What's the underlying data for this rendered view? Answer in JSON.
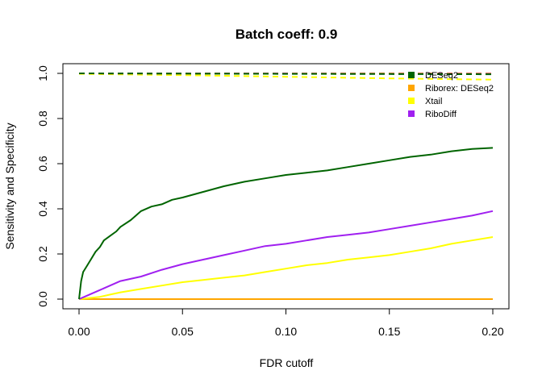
{
  "chart_data": {
    "type": "line",
    "title": "Batch coeff: 0.9",
    "xlabel": "FDR cutoff",
    "ylabel": "Sensitivity and Specificity",
    "xlim": [
      0,
      0.2
    ],
    "ylim": [
      0,
      1
    ],
    "xticks": [
      0,
      0.05,
      0.1,
      0.15,
      0.2
    ],
    "xtick_labels": [
      "0.00",
      "0.05",
      "0.10",
      "0.15",
      "0.20"
    ],
    "yticks": [
      0,
      0.2,
      0.4,
      0.6,
      0.8,
      1.0
    ],
    "ytick_labels": [
      "0.0",
      "0.2",
      "0.4",
      "0.6",
      "0.8",
      "1.0"
    ],
    "grid": false,
    "legend_position": "top-right",
    "series": [
      {
        "name": "DESeq2",
        "color": "#006400",
        "role": "sensitivity",
        "x": [
          0,
          0.001,
          0.002,
          0.004,
          0.006,
          0.008,
          0.01,
          0.012,
          0.015,
          0.018,
          0.02,
          0.025,
          0.03,
          0.035,
          0.04,
          0.045,
          0.05,
          0.06,
          0.07,
          0.08,
          0.09,
          0.1,
          0.11,
          0.12,
          0.13,
          0.14,
          0.15,
          0.16,
          0.17,
          0.18,
          0.19,
          0.2
        ],
        "values": [
          0,
          0.08,
          0.12,
          0.15,
          0.18,
          0.21,
          0.23,
          0.26,
          0.28,
          0.3,
          0.32,
          0.35,
          0.39,
          0.41,
          0.42,
          0.44,
          0.45,
          0.475,
          0.5,
          0.52,
          0.535,
          0.55,
          0.56,
          0.57,
          0.585,
          0.6,
          0.615,
          0.63,
          0.64,
          0.655,
          0.665,
          0.67
        ]
      },
      {
        "name": "Riborex: DESeq2",
        "color": "#FFA500",
        "role": "sensitivity",
        "x": [
          0,
          0.2
        ],
        "values": [
          0,
          0
        ]
      },
      {
        "name": "Xtail",
        "color": "#FFFF00",
        "role": "sensitivity",
        "x": [
          0,
          0.005,
          0.01,
          0.015,
          0.02,
          0.03,
          0.04,
          0.05,
          0.06,
          0.07,
          0.08,
          0.09,
          0.1,
          0.11,
          0.12,
          0.13,
          0.14,
          0.15,
          0.16,
          0.17,
          0.18,
          0.19,
          0.2
        ],
        "values": [
          0,
          0.005,
          0.01,
          0.02,
          0.03,
          0.045,
          0.06,
          0.075,
          0.085,
          0.095,
          0.105,
          0.12,
          0.135,
          0.15,
          0.16,
          0.175,
          0.185,
          0.195,
          0.21,
          0.225,
          0.245,
          0.26,
          0.275
        ]
      },
      {
        "name": "RiboDiff",
        "color": "#A020F0",
        "role": "sensitivity",
        "x": [
          0,
          0.005,
          0.01,
          0.015,
          0.02,
          0.03,
          0.04,
          0.05,
          0.06,
          0.07,
          0.08,
          0.09,
          0.1,
          0.11,
          0.12,
          0.13,
          0.14,
          0.15,
          0.16,
          0.17,
          0.18,
          0.19,
          0.2
        ],
        "values": [
          0,
          0.02,
          0.04,
          0.06,
          0.08,
          0.1,
          0.13,
          0.155,
          0.175,
          0.195,
          0.215,
          0.235,
          0.245,
          0.26,
          0.275,
          0.285,
          0.295,
          0.31,
          0.325,
          0.34,
          0.355,
          0.37,
          0.39
        ]
      },
      {
        "name": "DESeq2",
        "color": "#006400",
        "role": "specificity",
        "dashed": true,
        "x": [
          0,
          0.05,
          0.1,
          0.15,
          0.2
        ],
        "values": [
          1.0,
          0.999,
          0.998,
          0.997,
          0.996
        ]
      },
      {
        "name": "Riborex: DESeq2",
        "color": "#FFA500",
        "role": "specificity",
        "dashed": true,
        "x": [
          0,
          0.05,
          0.1,
          0.15,
          0.2
        ],
        "values": [
          1.0,
          1.0,
          1.0,
          1.0,
          1.0
        ]
      },
      {
        "name": "Xtail",
        "color": "#FFFF00",
        "role": "specificity",
        "dashed": true,
        "x": [
          0,
          0.05,
          0.1,
          0.15,
          0.2
        ],
        "values": [
          0.998,
          0.992,
          0.985,
          0.978,
          0.972
        ]
      },
      {
        "name": "RiboDiff",
        "color": "#A020F0",
        "role": "specificity",
        "dashed": true,
        "x": [
          0,
          0.05,
          0.1,
          0.15,
          0.2
        ],
        "values": [
          1.0,
          0.999,
          0.999,
          0.998,
          0.998
        ]
      }
    ],
    "legend": [
      {
        "label": "DESeq2",
        "color": "#006400"
      },
      {
        "label": "Riborex: DESeq2",
        "color": "#FFA500"
      },
      {
        "label": "Xtail",
        "color": "#FFFF00"
      },
      {
        "label": "RiboDiff",
        "color": "#A020F0"
      }
    ]
  }
}
